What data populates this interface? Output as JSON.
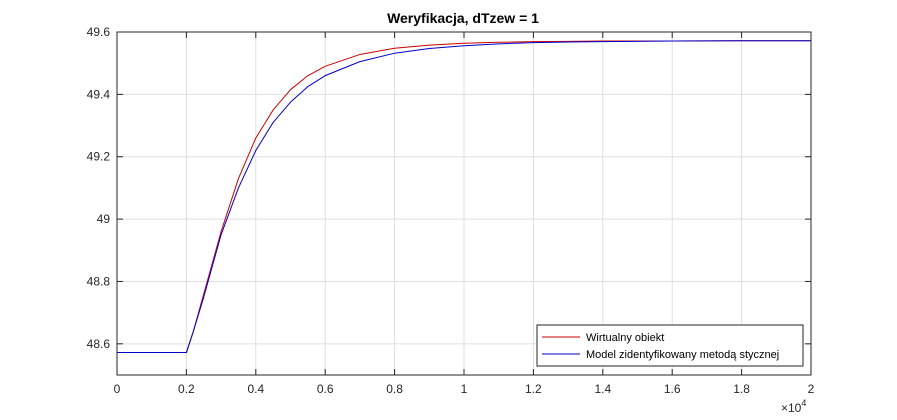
{
  "chart_data": {
    "type": "line",
    "title": "Weryfikacja, dTzew = 1",
    "xlabel": "",
    "ylabel": "",
    "x_exponent_label": "×10",
    "x_exponent_power": "4",
    "xlim": [
      0,
      20000
    ],
    "ylim": [
      48.5,
      49.6
    ],
    "xticks": [
      0,
      2000,
      4000,
      6000,
      8000,
      10000,
      12000,
      14000,
      16000,
      18000,
      20000
    ],
    "xtick_labels": [
      "0",
      "0.2",
      "0.4",
      "0.6",
      "0.8",
      "1",
      "1.2",
      "1.4",
      "1.6",
      "1.8",
      "2"
    ],
    "yticks": [
      48.6,
      48.8,
      49.0,
      49.2,
      49.4,
      49.6
    ],
    "ytick_labels": [
      "48.6",
      "48.8",
      "49",
      "49.2",
      "49.4",
      "49.6"
    ],
    "grid": true,
    "legend_position": "bottom-right",
    "series": [
      {
        "name": "Wirtualny obiekt",
        "color": "#cc0000",
        "x": [
          0,
          2000,
          2200,
          2500,
          3000,
          3500,
          4000,
          4500,
          5000,
          5500,
          6000,
          7000,
          8000,
          9000,
          10000,
          11000,
          12000,
          13000,
          14000,
          16000,
          18000,
          20000
        ],
        "y": [
          48.572,
          48.572,
          48.64,
          48.76,
          48.96,
          49.13,
          49.26,
          49.35,
          49.415,
          49.46,
          49.49,
          49.528,
          49.548,
          49.558,
          49.564,
          49.567,
          49.569,
          49.57,
          49.571,
          49.571,
          49.572,
          49.572
        ]
      },
      {
        "name": "Model zidentyfikowany metodą stycznej",
        "color": "#0000cc",
        "x": [
          0,
          2000,
          2200,
          2500,
          3000,
          3500,
          4000,
          4500,
          5000,
          5500,
          6000,
          7000,
          8000,
          9000,
          10000,
          11000,
          12000,
          13000,
          14000,
          16000,
          18000,
          20000
        ],
        "y": [
          48.572,
          48.572,
          48.64,
          48.75,
          48.95,
          49.1,
          49.22,
          49.31,
          49.375,
          49.425,
          49.46,
          49.505,
          49.532,
          49.547,
          49.556,
          49.562,
          49.566,
          49.568,
          49.569,
          49.571,
          49.572,
          49.572
        ]
      }
    ]
  }
}
